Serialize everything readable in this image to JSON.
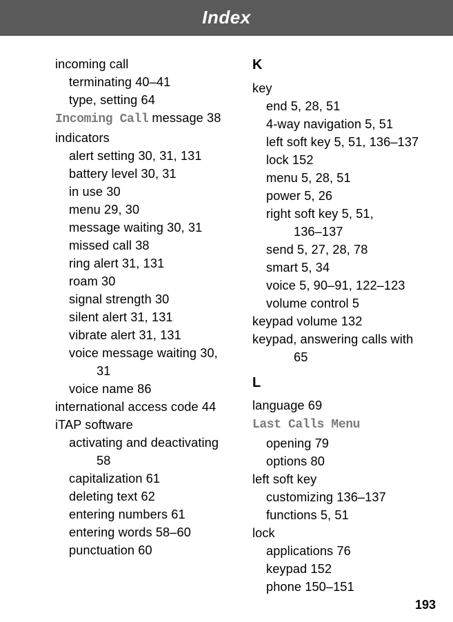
{
  "header": "Index",
  "pageNumber": "193",
  "left": {
    "incomingCall": {
      "head": "incoming call",
      "terminating": "terminating  40–41",
      "typeSetting": "type, setting  64"
    },
    "incomingCallMessageMono": "Incoming Call",
    "incomingCallMessageTail": " message  38",
    "indicators": {
      "head": "indicators",
      "alertSetting": "alert setting  30, 31, 131",
      "batteryLevel": "battery level  30, 31",
      "inUse": "in use  30",
      "menu": "menu  29, 30",
      "messageWaiting": "message waiting  30, 31",
      "missedCall": "missed call  38",
      "ringAlert": "ring alert  31, 131",
      "roam": "roam  30",
      "signalStrength": "signal strength  30",
      "silentAlert": "silent alert  31, 131",
      "vibrateAlert": "vibrate alert  31, 131",
      "voiceMsgWaiting1": "voice message waiting  30, ",
      "voiceMsgWaiting2": "31",
      "voiceName": "voice name  86"
    },
    "intlAccessCode": "international access code  44",
    "iTAP": {
      "head": "iTAP software",
      "activating1": "activating and deactivating  ",
      "activating2": "58",
      "capitalization": "capitalization  61",
      "deletingText": "deleting text  62",
      "enteringNumbers": "entering numbers  61",
      "enteringWords": "entering words  58–60",
      "punctuation": "punctuation  60"
    }
  },
  "right": {
    "sectionK": "K",
    "key": {
      "head": "key",
      "end": "end  5, 28, 51",
      "fourWay": "4-way navigation  5, 51",
      "leftSoft": "left soft key  5, 51, 136–137",
      "lock": "lock  152",
      "menu": "menu  5, 28, 51",
      "power": "power  5, 26",
      "rightSoft1": "right soft key  5, 51, ",
      "rightSoft2": "136–137",
      "send": "send  5, 27, 28, 78",
      "smart": "smart  5, 34",
      "voice": "voice  5, 90–91, 122–123",
      "volume": "volume control  5"
    },
    "keypadVolume": "keypad volume  132",
    "keypadAnswer1": "keypad, answering calls with  ",
    "keypadAnswer2": "65",
    "sectionL": "L",
    "language": "language  69",
    "lastCallsMono": "Last Calls Menu",
    "lastCalls": {
      "opening": "opening  79",
      "options": "options  80"
    },
    "leftSoftKey": {
      "head": "left soft key",
      "customizing": "customizing  136–137",
      "functions": "functions  5, 51"
    },
    "lock": {
      "head": "lock",
      "applications": "applications  76",
      "keypad": "keypad  152",
      "phone": "phone  150–151"
    }
  }
}
